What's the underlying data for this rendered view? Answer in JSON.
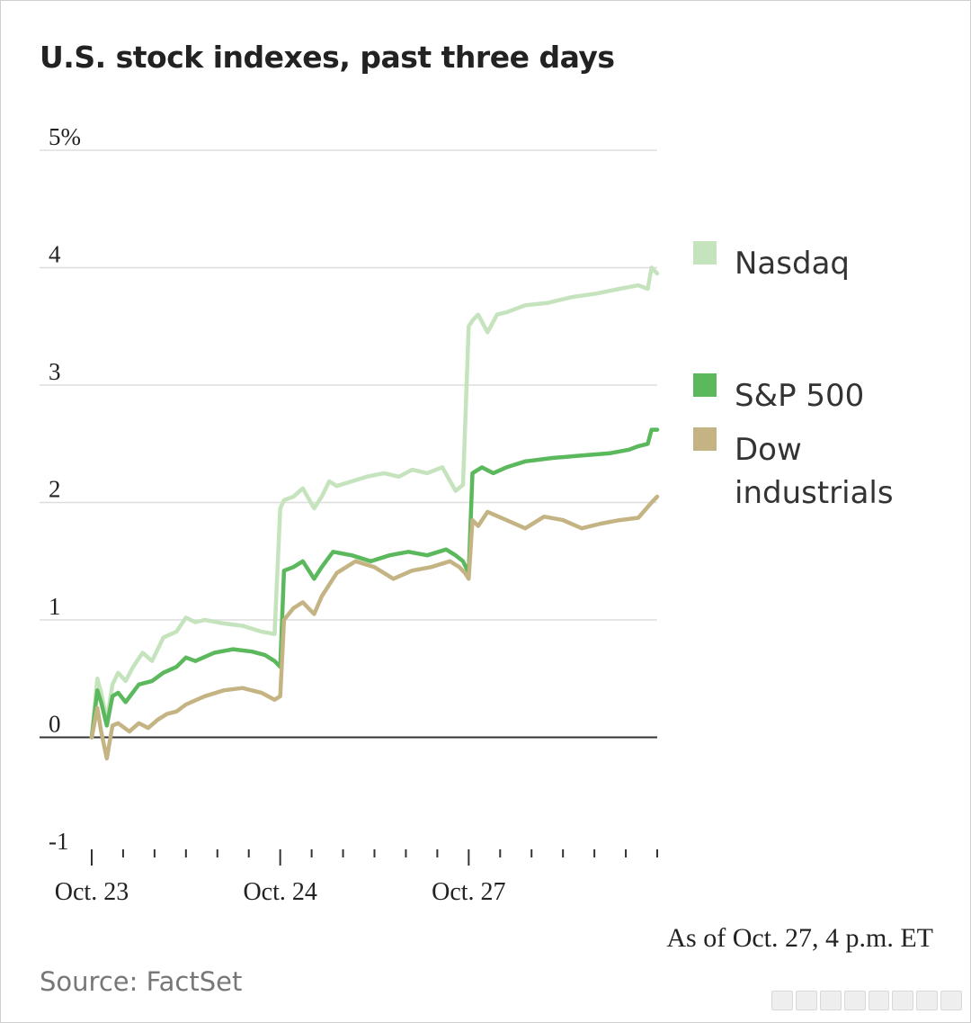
{
  "title": "U.S. stock indexes, past three days",
  "as_of": "As of Oct. 27, 4 p.m. ET",
  "source": "Source: FactSet",
  "chart_data": {
    "type": "line",
    "title": "U.S. stock indexes, past three days",
    "ylabel": "%",
    "ylim": [
      -1,
      5
    ],
    "yticks": [
      5,
      4,
      3,
      2,
      1,
      0,
      -1
    ],
    "ytick_labels": [
      "5%",
      "4",
      "3",
      "2",
      "1",
      "0",
      "-1"
    ],
    "xlim": [
      0,
      3
    ],
    "xtick_labels": [
      {
        "pos": 0,
        "label": "Oct. 23"
      },
      {
        "pos": 1,
        "label": "Oct. 24"
      },
      {
        "pos": 2,
        "label": "Oct. 27"
      }
    ],
    "minor_ticks_per_day": 6,
    "grid": true,
    "legend_placement": "right",
    "series": [
      {
        "name": "Nasdaq",
        "legend_label": [
          "Nasdaq"
        ],
        "color": "#c5e3bd",
        "x": [
          0,
          0.03,
          0.05,
          0.08,
          0.11,
          0.14,
          0.18,
          0.22,
          0.27,
          0.32,
          0.38,
          0.45,
          0.5,
          0.55,
          0.6,
          0.7,
          0.8,
          0.9,
          0.97,
          1.0,
          1.02,
          1.07,
          1.12,
          1.18,
          1.22,
          1.26,
          1.3,
          1.38,
          1.46,
          1.55,
          1.63,
          1.7,
          1.78,
          1.86,
          1.93,
          1.97,
          2.0,
          2.02,
          2.05,
          2.1,
          2.15,
          2.2,
          2.3,
          2.42,
          2.55,
          2.68,
          2.8,
          2.9,
          2.95,
          2.97,
          3.0
        ],
        "values": [
          0.0,
          0.5,
          0.38,
          0.15,
          0.45,
          0.55,
          0.48,
          0.6,
          0.72,
          0.65,
          0.85,
          0.9,
          1.02,
          0.98,
          1.0,
          0.97,
          0.95,
          0.9,
          0.88,
          1.95,
          2.02,
          2.05,
          2.12,
          1.95,
          2.05,
          2.18,
          2.14,
          2.18,
          2.22,
          2.25,
          2.22,
          2.28,
          2.25,
          2.3,
          2.1,
          2.15,
          3.5,
          3.55,
          3.6,
          3.45,
          3.6,
          3.62,
          3.68,
          3.7,
          3.75,
          3.78,
          3.82,
          3.85,
          3.82,
          4.0,
          3.95
        ]
      },
      {
        "name": "S&P 500",
        "legend_label": [
          "S&P 500"
        ],
        "color": "#5cb85c",
        "x": [
          0,
          0.03,
          0.05,
          0.08,
          0.11,
          0.14,
          0.18,
          0.25,
          0.32,
          0.38,
          0.45,
          0.5,
          0.55,
          0.65,
          0.75,
          0.85,
          0.92,
          0.97,
          1.0,
          1.02,
          1.07,
          1.12,
          1.18,
          1.22,
          1.28,
          1.38,
          1.48,
          1.58,
          1.68,
          1.78,
          1.88,
          1.93,
          1.97,
          2.0,
          2.02,
          2.07,
          2.13,
          2.2,
          2.3,
          2.45,
          2.6,
          2.75,
          2.85,
          2.9,
          2.95,
          2.97,
          3.0
        ],
        "values": [
          0.0,
          0.4,
          0.3,
          0.1,
          0.35,
          0.38,
          0.3,
          0.45,
          0.48,
          0.55,
          0.6,
          0.68,
          0.65,
          0.72,
          0.75,
          0.73,
          0.7,
          0.65,
          0.6,
          1.42,
          1.45,
          1.5,
          1.35,
          1.45,
          1.58,
          1.55,
          1.5,
          1.55,
          1.58,
          1.55,
          1.6,
          1.55,
          1.5,
          1.4,
          2.25,
          2.3,
          2.25,
          2.3,
          2.35,
          2.38,
          2.4,
          2.42,
          2.45,
          2.48,
          2.5,
          2.62,
          2.62
        ]
      },
      {
        "name": "Dow industrials",
        "legend_label": [
          "Dow",
          "industrials"
        ],
        "color": "#c4b383",
        "x": [
          0,
          0.03,
          0.05,
          0.08,
          0.11,
          0.14,
          0.2,
          0.25,
          0.3,
          0.35,
          0.4,
          0.45,
          0.5,
          0.6,
          0.7,
          0.8,
          0.9,
          0.97,
          1.0,
          1.02,
          1.07,
          1.12,
          1.18,
          1.22,
          1.3,
          1.4,
          1.5,
          1.6,
          1.7,
          1.8,
          1.9,
          1.95,
          1.98,
          2.0,
          2.02,
          2.05,
          2.1,
          2.2,
          2.3,
          2.4,
          2.5,
          2.6,
          2.7,
          2.8,
          2.9,
          2.97,
          3.0
        ],
        "values": [
          0.0,
          0.25,
          0.05,
          -0.18,
          0.1,
          0.12,
          0.05,
          0.12,
          0.08,
          0.15,
          0.2,
          0.22,
          0.28,
          0.35,
          0.4,
          0.42,
          0.38,
          0.32,
          0.35,
          1.0,
          1.1,
          1.15,
          1.05,
          1.2,
          1.4,
          1.5,
          1.45,
          1.35,
          1.42,
          1.45,
          1.5,
          1.45,
          1.4,
          1.35,
          1.85,
          1.8,
          1.92,
          1.85,
          1.78,
          1.88,
          1.85,
          1.78,
          1.82,
          1.85,
          1.87,
          2.0,
          2.05
        ]
      }
    ]
  }
}
